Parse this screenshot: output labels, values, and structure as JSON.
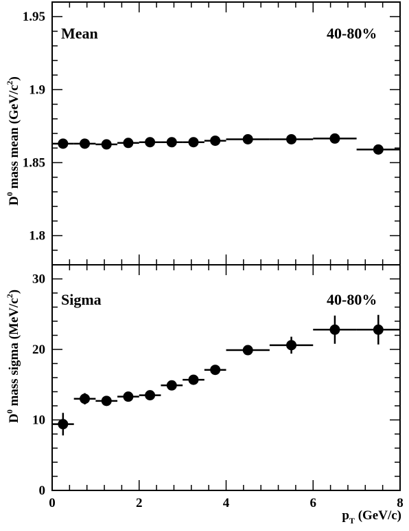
{
  "chart_data": [
    {
      "type": "scatter",
      "panel_label": "Mean",
      "centrality": "40-80%",
      "ylabel": "D",
      "ylabel_sup": "0",
      "ylabel_rest": " mass mean (GeV/c",
      "ylabel_unit_sup": "2",
      "ylabel_close": ")",
      "xlim": [
        0,
        8
      ],
      "ylim": [
        1.78,
        1.96
      ],
      "ytick_major": [
        1.8,
        1.85,
        1.9,
        1.95
      ],
      "ytick_labels": [
        "1.8",
        "1.85",
        "1.9",
        "1.95"
      ],
      "points": [
        {
          "x": 0.25,
          "y": 1.863,
          "xlo": 0.0,
          "xhi": 0.5,
          "yerr": 0.0
        },
        {
          "x": 0.75,
          "y": 1.863,
          "xlo": 0.5,
          "xhi": 1.0,
          "yerr": 0.0
        },
        {
          "x": 1.25,
          "y": 1.8625,
          "xlo": 1.0,
          "xhi": 1.5,
          "yerr": 0.0
        },
        {
          "x": 1.75,
          "y": 1.8635,
          "xlo": 1.5,
          "xhi": 2.0,
          "yerr": 0.0
        },
        {
          "x": 2.25,
          "y": 1.864,
          "xlo": 2.0,
          "xhi": 2.5,
          "yerr": 0.0
        },
        {
          "x": 2.75,
          "y": 1.864,
          "xlo": 2.5,
          "xhi": 3.0,
          "yerr": 0.0
        },
        {
          "x": 3.25,
          "y": 1.864,
          "xlo": 3.0,
          "xhi": 3.5,
          "yerr": 0.0
        },
        {
          "x": 3.75,
          "y": 1.865,
          "xlo": 3.5,
          "xhi": 4.0,
          "yerr": 0.0
        },
        {
          "x": 4.5,
          "y": 1.866,
          "xlo": 4.0,
          "xhi": 5.0,
          "yerr": 0.0
        },
        {
          "x": 5.5,
          "y": 1.866,
          "xlo": 5.0,
          "xhi": 6.0,
          "yerr": 0.0
        },
        {
          "x": 6.5,
          "y": 1.8665,
          "xlo": 6.0,
          "xhi": 7.0,
          "yerr": 0.0
        },
        {
          "x": 7.5,
          "y": 1.859,
          "xlo": 7.0,
          "xhi": 8.0,
          "yerr": 0.0
        }
      ]
    },
    {
      "type": "scatter",
      "panel_label": "Sigma",
      "centrality": "40-80%",
      "ylabel": "D",
      "ylabel_sup": "0",
      "ylabel_rest": " mass sigma (MeV/c",
      "ylabel_unit_sup": "2",
      "ylabel_close": ")",
      "xlabel": "p",
      "xlabel_sub": "T",
      "xlabel_rest": " (GeV/c)",
      "xlim": [
        0,
        8
      ],
      "ylim": [
        0,
        32
      ],
      "ytick_major": [
        0,
        10,
        20,
        30
      ],
      "ytick_labels": [
        "0",
        "10",
        "20",
        "30"
      ],
      "xtick_major": [
        0,
        2,
        4,
        6,
        8
      ],
      "xtick_labels": [
        "0",
        "2",
        "4",
        "6",
        "8"
      ],
      "points": [
        {
          "x": 0.25,
          "y": 9.4,
          "xlo": 0.0,
          "xhi": 0.5,
          "yerr": 1.6
        },
        {
          "x": 0.75,
          "y": 13.0,
          "xlo": 0.5,
          "xhi": 1.0,
          "yerr": 0.8
        },
        {
          "x": 1.25,
          "y": 12.7,
          "xlo": 1.0,
          "xhi": 1.5,
          "yerr": 0.5
        },
        {
          "x": 1.75,
          "y": 13.3,
          "xlo": 1.5,
          "xhi": 2.0,
          "yerr": 0.4
        },
        {
          "x": 2.25,
          "y": 13.5,
          "xlo": 2.0,
          "xhi": 2.5,
          "yerr": 0.4
        },
        {
          "x": 2.75,
          "y": 14.9,
          "xlo": 2.5,
          "xhi": 3.0,
          "yerr": 0.4
        },
        {
          "x": 3.25,
          "y": 15.7,
          "xlo": 3.0,
          "xhi": 3.5,
          "yerr": 0.4
        },
        {
          "x": 3.75,
          "y": 17.1,
          "xlo": 3.5,
          "xhi": 4.0,
          "yerr": 0.4
        },
        {
          "x": 4.5,
          "y": 19.9,
          "xlo": 4.0,
          "xhi": 5.0,
          "yerr": 0.5
        },
        {
          "x": 5.5,
          "y": 20.6,
          "xlo": 5.0,
          "xhi": 6.0,
          "yerr": 1.2
        },
        {
          "x": 6.5,
          "y": 22.8,
          "xlo": 6.0,
          "xhi": 7.0,
          "yerr": 2.0
        },
        {
          "x": 7.5,
          "y": 22.8,
          "xlo": 7.0,
          "xhi": 8.0,
          "yerr": 2.1
        }
      ]
    }
  ]
}
